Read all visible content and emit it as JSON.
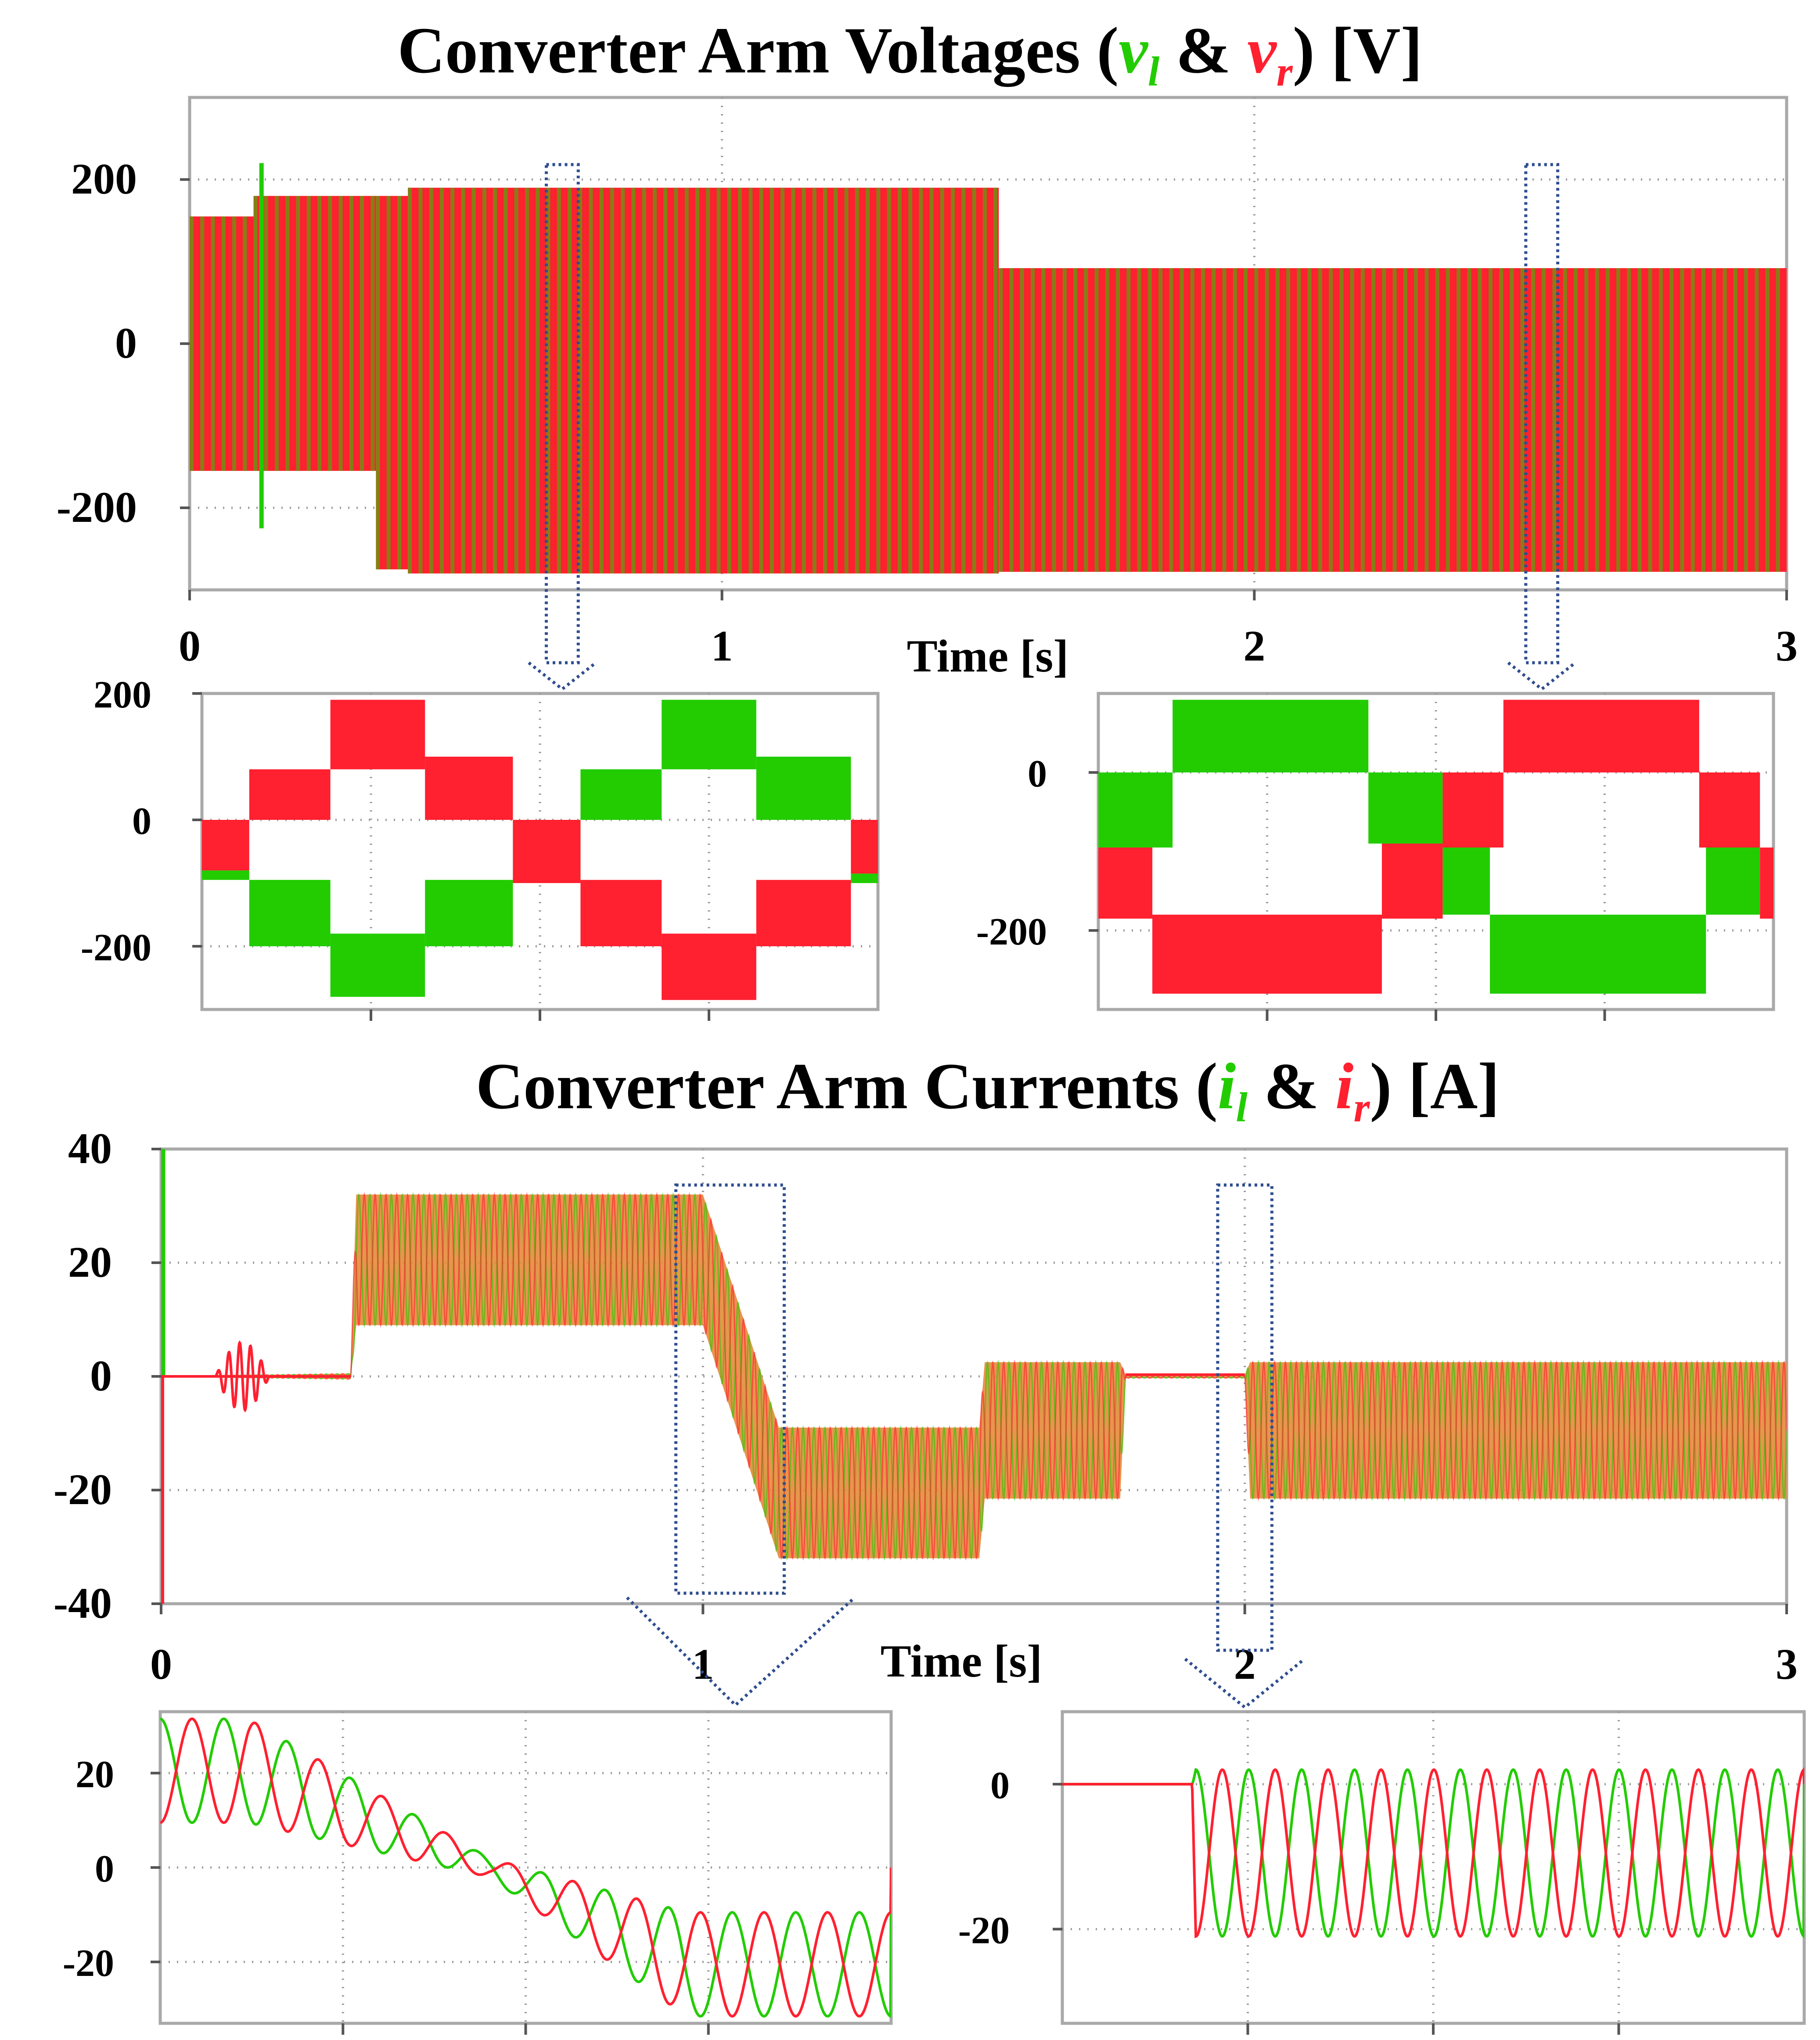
{
  "colors": {
    "left_arm": "#22cc00",
    "right_arm": "#ff2030",
    "blend": "#e58a3a",
    "zoom_marker": "#2e4d8f"
  },
  "titles": {
    "voltage": {
      "prefix": "Converter Arm Voltages (",
      "sym_l": "v",
      "sub_l": "l",
      "amp": " & ",
      "sym_r": "v",
      "sub_r": "r",
      "suffix": ") [V]"
    },
    "current": {
      "prefix": "Converter Arm Currents (",
      "sym_l": "i",
      "sub_l": "l",
      "amp": " & ",
      "sym_r": "i",
      "sub_r": "r",
      "suffix": ") [A]"
    }
  },
  "chart_data": [
    {
      "id": "voltage-main",
      "type": "line",
      "xlabel": "Time [s]",
      "ylabel": "",
      "xlim": [
        0,
        3
      ],
      "ylim": [
        -300,
        300
      ],
      "xticks": [
        "0",
        "1",
        "2",
        "3"
      ],
      "yticks": [
        {
          "value": 200,
          "label": "200"
        },
        {
          "value": 0,
          "label": "0"
        },
        {
          "value": -200,
          "label": "-200"
        }
      ],
      "grid": true,
      "series": [
        {
          "color": "left_arm",
          "envelope_segments": [
            {
              "t": [
                0.0,
                0.12
              ],
              "max": 155,
              "min": -155
            },
            {
              "t": [
                0.12,
                0.35
              ],
              "max": 180,
              "min": -155
            },
            {
              "t": [
                0.35,
                0.41
              ],
              "max": 180,
              "min": -275
            },
            {
              "t": [
                0.41,
                1.52
              ],
              "max": 190,
              "min": -280
            },
            {
              "t": [
                1.52,
                3.0
              ],
              "max": 92,
              "min": -278
            }
          ]
        },
        {
          "color": "right_arm",
          "envelope_segments": [
            {
              "t": [
                0.0,
                0.12
              ],
              "max": 155,
              "min": -155
            },
            {
              "t": [
                0.12,
                0.35
              ],
              "max": 180,
              "min": -155
            },
            {
              "t": [
                0.35,
                0.41
              ],
              "max": 180,
              "min": -275
            },
            {
              "t": [
                0.41,
                1.52
              ],
              "max": 190,
              "min": -280
            },
            {
              "t": [
                1.52,
                3.0
              ],
              "max": 92,
              "min": -278
            }
          ]
        }
      ],
      "zoom_windows": [
        {
          "t": [
            0.67,
            0.73
          ]
        },
        {
          "t": [
            2.51,
            2.57
          ]
        }
      ]
    },
    {
      "id": "voltage-zoom-1",
      "type": "line",
      "ylim": [
        -300,
        200
      ],
      "yticks": [
        {
          "value": 200,
          "label": "200"
        },
        {
          "value": 0,
          "label": "0"
        },
        {
          "value": -200,
          "label": "-200"
        }
      ],
      "grid": true,
      "series": [
        {
          "color": "left_arm",
          "steps": [
            {
              "t": [
                0.0,
                0.07
              ],
              "lo": -95,
              "hi": -80
            },
            {
              "t": [
                0.07,
                0.19
              ],
              "lo": -200,
              "hi": -95
            },
            {
              "t": [
                0.19,
                0.33
              ],
              "lo": -280,
              "hi": -180
            },
            {
              "t": [
                0.33,
                0.46
              ],
              "lo": -200,
              "hi": -95
            },
            {
              "t": [
                0.46,
                0.56
              ],
              "lo": -95,
              "hi": 0
            },
            {
              "t": [
                0.56,
                0.68
              ],
              "lo": 0,
              "hi": 80
            },
            {
              "t": [
                0.68,
                0.82
              ],
              "lo": 80,
              "hi": 190
            },
            {
              "t": [
                0.82,
                0.96
              ],
              "lo": 0,
              "hi": 100
            },
            {
              "t": [
                0.96,
                1.0
              ],
              "lo": -100,
              "hi": -85
            }
          ]
        },
        {
          "color": "right_arm",
          "steps": [
            {
              "t": [
                0.0,
                0.07
              ],
              "lo": -80,
              "hi": 0
            },
            {
              "t": [
                0.07,
                0.19
              ],
              "lo": 0,
              "hi": 80
            },
            {
              "t": [
                0.19,
                0.33
              ],
              "lo": 80,
              "hi": 190
            },
            {
              "t": [
                0.33,
                0.46
              ],
              "lo": 0,
              "hi": 100
            },
            {
              "t": [
                0.46,
                0.56
              ],
              "lo": -100,
              "hi": 0
            },
            {
              "t": [
                0.56,
                0.68
              ],
              "lo": -200,
              "hi": -95
            },
            {
              "t": [
                0.68,
                0.82
              ],
              "lo": -285,
              "hi": -180
            },
            {
              "t": [
                0.82,
                0.96
              ],
              "lo": -200,
              "hi": -95
            },
            {
              "t": [
                0.96,
                1.0
              ],
              "lo": -85,
              "hi": 0
            }
          ]
        }
      ]
    },
    {
      "id": "voltage-zoom-2",
      "type": "line",
      "ylim": [
        -300,
        100
      ],
      "yticks": [
        {
          "value": 0,
          "label": "0"
        },
        {
          "value": -200,
          "label": "-200"
        }
      ],
      "grid": true,
      "series": [
        {
          "color": "left_arm",
          "steps": [
            {
              "t": [
                0.0,
                0.11
              ],
              "lo": -95,
              "hi": 0
            },
            {
              "t": [
                0.11,
                0.4
              ],
              "lo": 0,
              "hi": 92
            },
            {
              "t": [
                0.4,
                0.51
              ],
              "lo": -90,
              "hi": 0
            },
            {
              "t": [
                0.51,
                0.58
              ],
              "lo": -180,
              "hi": -95
            },
            {
              "t": [
                0.58,
                0.9
              ],
              "lo": -280,
              "hi": -180
            },
            {
              "t": [
                0.9,
                0.98
              ],
              "lo": -180,
              "hi": -95
            }
          ]
        },
        {
          "color": "right_arm",
          "steps": [
            {
              "t": [
                0.0,
                0.08
              ],
              "lo": -185,
              "hi": -95
            },
            {
              "t": [
                0.08,
                0.42
              ],
              "lo": -280,
              "hi": -180
            },
            {
              "t": [
                0.42,
                0.51
              ],
              "lo": -185,
              "hi": -90
            },
            {
              "t": [
                0.51,
                0.6
              ],
              "lo": -95,
              "hi": 0
            },
            {
              "t": [
                0.6,
                0.89
              ],
              "lo": 0,
              "hi": 92
            },
            {
              "t": [
                0.89,
                0.98
              ],
              "lo": -95,
              "hi": 0
            },
            {
              "t": [
                0.98,
                1.0
              ],
              "lo": -185,
              "hi": -95
            }
          ]
        }
      ]
    },
    {
      "id": "current-main",
      "type": "line",
      "xlabel": "Time [s]",
      "ylabel": "",
      "xlim": [
        0,
        3
      ],
      "ylim": [
        -40,
        40
      ],
      "xticks": [
        "0",
        "1",
        "2",
        "3"
      ],
      "yticks": [
        {
          "value": 40,
          "label": "40"
        },
        {
          "value": 20,
          "label": "20"
        },
        {
          "value": 0,
          "label": "0"
        },
        {
          "value": -20,
          "label": "-20"
        },
        {
          "value": -40,
          "label": "-40"
        }
      ],
      "grid": true,
      "series": [
        {
          "color": "left_arm",
          "envelope_points": [
            {
              "t": 0.0,
              "center": 0,
              "amp": 0
            },
            {
              "t": 0.35,
              "center": 0,
              "amp": 0.5
            },
            {
              "t": 0.36,
              "center": 20.5,
              "amp": 11.5
            },
            {
              "t": 1.0,
              "center": 20.5,
              "amp": 11.5
            },
            {
              "t": 1.14,
              "center": -20.5,
              "amp": 11.5
            },
            {
              "t": 1.51,
              "center": -20.5,
              "amp": 11.5
            },
            {
              "t": 1.52,
              "center": -9.5,
              "amp": 12
            },
            {
              "t": 1.77,
              "center": -9.5,
              "amp": 12
            },
            {
              "t": 1.78,
              "center": 0,
              "amp": 0.3
            },
            {
              "t": 2.0,
              "center": 0,
              "amp": 0.3
            },
            {
              "t": 2.01,
              "center": -9.5,
              "amp": 12
            },
            {
              "t": 3.0,
              "center": -9.5,
              "amp": 12
            }
          ]
        },
        {
          "color": "right_arm",
          "same_envelope_as": "left_arm",
          "phase_shift_deg": 180
        }
      ],
      "zoom_windows": [
        {
          "t": [
            0.94,
            1.15
          ]
        },
        {
          "t": [
            1.95,
            2.05
          ]
        }
      ]
    },
    {
      "id": "current-zoom-1",
      "type": "line",
      "ylim": [
        -33,
        33
      ],
      "yticks": [
        {
          "value": 20,
          "label": "20"
        },
        {
          "value": 0,
          "label": "0"
        },
        {
          "value": -20,
          "label": "-20"
        }
      ],
      "grid": true,
      "series": [
        {
          "color": "left_arm",
          "cycles": 11.5,
          "envelope_points": [
            {
              "u": 0.0,
              "center": 20.5,
              "amp": 11
            },
            {
              "u": 0.12,
              "center": 20.5,
              "amp": 11
            },
            {
              "u": 0.45,
              "center": 0,
              "amp": 2
            },
            {
              "u": 0.72,
              "center": -20.5,
              "amp": 11
            },
            {
              "u": 1.0,
              "center": -20.5,
              "amp": 11
            }
          ]
        },
        {
          "color": "right_arm",
          "same_envelope_as": "left_arm",
          "phase_shift_deg": 180
        }
      ]
    },
    {
      "id": "current-zoom-2",
      "type": "line",
      "ylim": [
        -33,
        10
      ],
      "yticks": [
        {
          "value": 0,
          "label": "0"
        },
        {
          "value": -20,
          "label": "-20"
        }
      ],
      "grid": true,
      "series": [
        {
          "color": "left_arm",
          "cycles_after_step": 11.5,
          "envelope_points": [
            {
              "u": 0.0,
              "center": 0,
              "amp": 0
            },
            {
              "u": 0.175,
              "center": 0,
              "amp": 0
            },
            {
              "u": 0.18,
              "center": -9.5,
              "amp": 11.5
            },
            {
              "u": 1.0,
              "center": -9.5,
              "amp": 11.5
            }
          ]
        },
        {
          "color": "right_arm",
          "same_envelope_as": "left_arm",
          "phase_shift_deg": 180
        }
      ]
    }
  ]
}
